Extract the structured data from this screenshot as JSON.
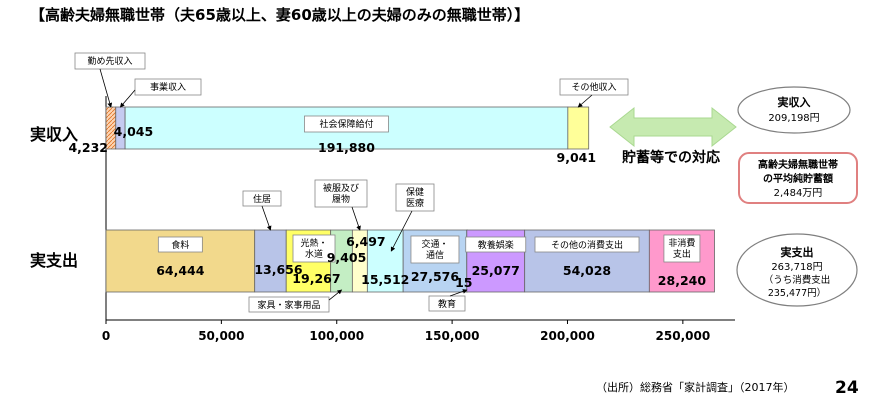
{
  "page": {
    "title": "【高齢夫婦無職世帯（夫65歳以上、妻60歳以上の夫婦のみの無職世帯）】",
    "source": "（出所）総務省「家計調査」（2017年）",
    "page_number": "24"
  },
  "colors": {
    "pension": "#ccffff",
    "other_income": "#ffff99",
    "work_income": "#fcd5b4",
    "business_income": "#c5cbf0",
    "food": "#f2d98c",
    "housing": "#b8c4e8",
    "utilities": "#ffff66",
    "furniture": "#c4eec4",
    "clothing": "#ffffcc",
    "medical": "#ccffff",
    "transport": "#b8d4f2",
    "education": "#c5cbf0",
    "recreation": "#cc99ff",
    "other_cons": "#b8c4e8",
    "nonconsumption": "#ff99cc",
    "arrow": "#c6eab0",
    "savings_border": "#e08080",
    "bubble_border": "#7f7f7f"
  },
  "annotations": {
    "savings_gap_label": "貯蓄等での対応",
    "income_total": {
      "line1": "実収入",
      "line2": "209,198円"
    },
    "savings": {
      "line1": "高齢夫婦無職世帯",
      "line2": "の平均純貯蓄額",
      "line3": "2,484万円"
    },
    "expense_total": {
      "line1": "実支出",
      "line2": "263,718円",
      "line3": "（うち消費支出",
      "line4": "235,477円）"
    }
  },
  "chart_data": {
    "type": "bar",
    "orientation": "horizontal",
    "stacked": true,
    "xlim": [
      0,
      270000
    ],
    "xticks": [
      0,
      50000,
      100000,
      150000,
      200000,
      250000
    ],
    "xtick_labels": [
      "0",
      "50,000",
      "100,000",
      "150,000",
      "200,000",
      "250,000"
    ],
    "rows": [
      {
        "label": "実収入",
        "segments": [
          {
            "name": "勤め先収入",
            "value": 4232,
            "value_label": "4,232",
            "color": "work_income",
            "name_style": "callout"
          },
          {
            "name": "事業収入",
            "value": 4045,
            "value_label": "4,045",
            "color": "business_income",
            "name_style": "callout"
          },
          {
            "name": "社会保障給付",
            "value": 191880,
            "value_label": "191,880",
            "color": "pension",
            "name_style": "inside"
          },
          {
            "name": "その他収入",
            "value": 9041,
            "value_label": "9,041",
            "color": "other_income",
            "name_style": "callout"
          }
        ]
      },
      {
        "label": "実支出",
        "segments": [
          {
            "name": "食料",
            "value": 64444,
            "value_label": "64,444",
            "color": "food",
            "name_style": "inside"
          },
          {
            "name": "住居",
            "value": 13656,
            "value_label": "13,656",
            "color": "housing",
            "name_style": "callout"
          },
          {
            "name": "光熱・水道",
            "value": 19267,
            "value_label": "19,267",
            "color": "utilities",
            "name_style": "inside"
          },
          {
            "name": "家具・家事用品",
            "value": 9405,
            "value_label": "9,405",
            "color": "furniture",
            "name_style": "callout"
          },
          {
            "name": "被服及び履物",
            "value": 6497,
            "value_label": "6,497",
            "color": "clothing",
            "name_style": "callout"
          },
          {
            "name": "保健医療",
            "value": 15512,
            "value_label": "15,512",
            "color": "medical",
            "name_style": "callout"
          },
          {
            "name": "交通・通信",
            "value": 27576,
            "value_label": "27,576",
            "color": "transport",
            "name_style": "inside"
          },
          {
            "name": "教育",
            "value": 15,
            "value_label": "15",
            "color": "education",
            "name_style": "callout"
          },
          {
            "name": "教養娯楽",
            "value": 25077,
            "value_label": "25,077",
            "color": "recreation",
            "name_style": "inside"
          },
          {
            "name": "その他の消費支出",
            "value": 54028,
            "value_label": "54,028",
            "color": "other_cons",
            "name_style": "inside"
          },
          {
            "name": "非消費支出",
            "value": 28240,
            "value_label": "28,240",
            "color": "nonconsumption",
            "name_style": "inside"
          }
        ]
      }
    ]
  }
}
